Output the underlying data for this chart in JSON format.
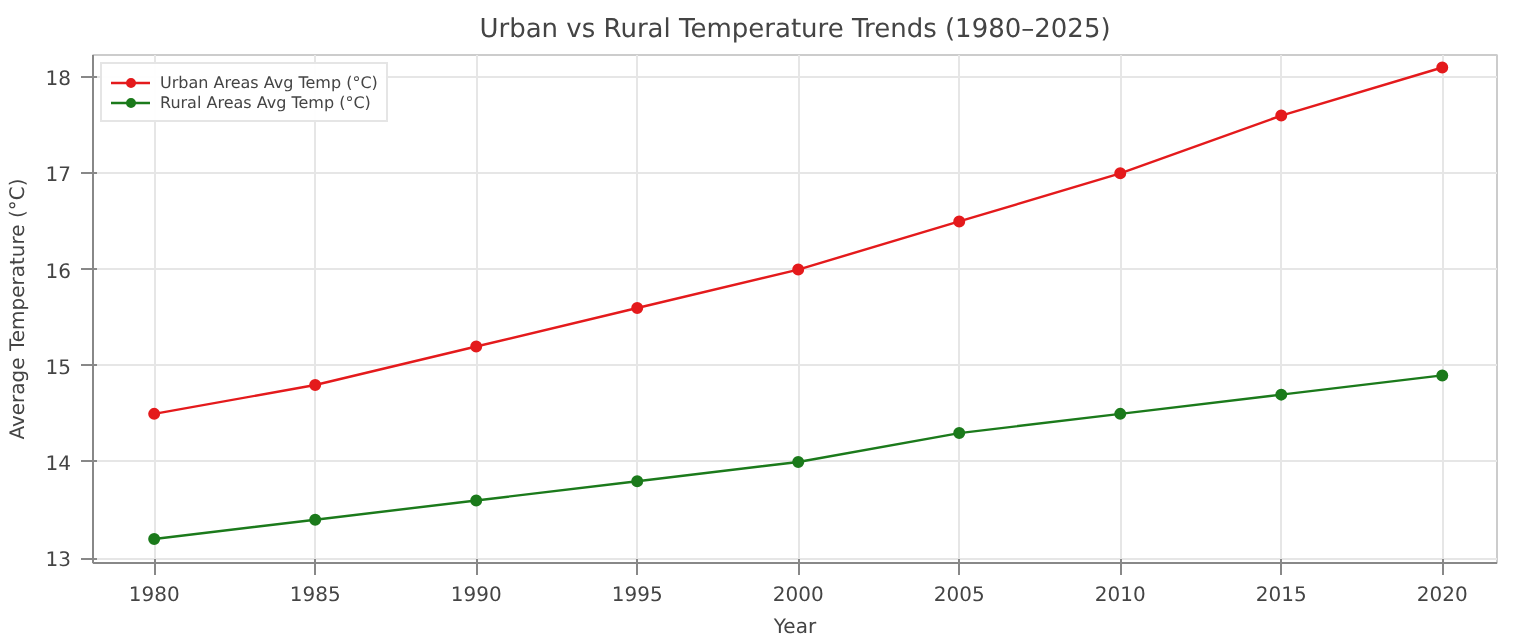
{
  "chart_data": {
    "type": "line",
    "title": "Urban vs Rural Temperature Trends (1980–2025)",
    "xlabel": "Year",
    "ylabel": "Average Temperature (°C)",
    "x": [
      1980,
      1985,
      1990,
      1995,
      2000,
      2005,
      2010,
      2015,
      2020
    ],
    "series": [
      {
        "name": "Urban Areas Avg Temp (°C)",
        "color": "#e41a1c",
        "values": [
          14.5,
          14.8,
          15.2,
          15.6,
          16.0,
          16.5,
          17.0,
          17.6,
          18.1
        ]
      },
      {
        "name": "Rural Areas Avg Temp (°C)",
        "color": "#1b7a1b",
        "values": [
          13.2,
          13.4,
          13.6,
          13.8,
          14.0,
          14.3,
          14.5,
          14.7,
          14.9
        ]
      }
    ],
    "xlim": [
      1978.1,
      2021.7
    ],
    "ylim": [
      12.95,
      18.23
    ],
    "xticks": [
      1980,
      1985,
      1990,
      1995,
      2000,
      2005,
      2010,
      2015,
      2020
    ],
    "yticks": [
      13,
      14,
      15,
      16,
      17,
      18
    ],
    "grid": true,
    "legend": "top left",
    "marker": "circle",
    "line_style": "solid"
  }
}
